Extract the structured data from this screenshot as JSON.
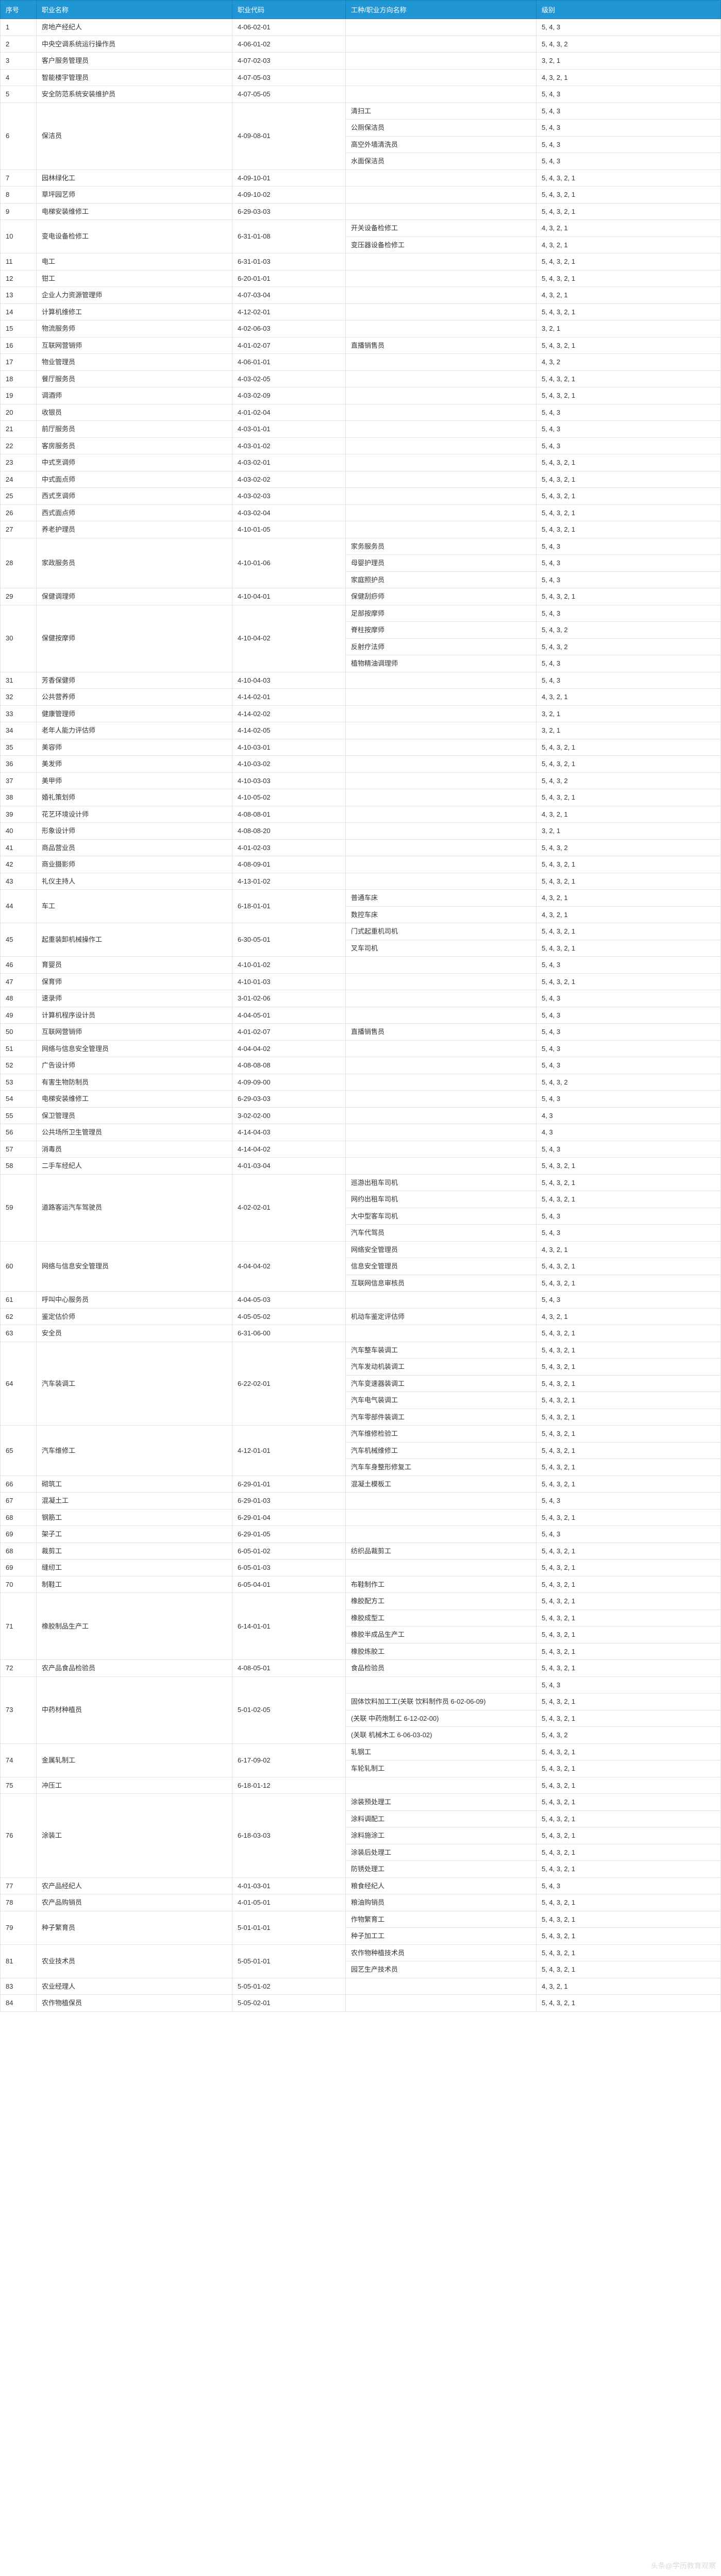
{
  "header": {
    "seq": "序号",
    "name": "职业名称",
    "code": "职业代码",
    "sub": "工种/职业方向名称",
    "level": "级别"
  },
  "watermark": "头条@学历教育观察",
  "rows": [
    {
      "seq": "1",
      "name": "房地产经纪人",
      "code": "4-06-02-01",
      "subs": [
        {
          "sub": "",
          "level": "5, 4, 3"
        }
      ]
    },
    {
      "seq": "2",
      "name": "中央空调系统运行操作员",
      "code": "4-06-01-02",
      "subs": [
        {
          "sub": "",
          "level": "5, 4, 3, 2"
        }
      ]
    },
    {
      "seq": "3",
      "name": "客户服务管理员",
      "code": "4-07-02-03",
      "subs": [
        {
          "sub": "",
          "level": "3, 2, 1"
        }
      ]
    },
    {
      "seq": "4",
      "name": "智能楼宇管理员",
      "code": "4-07-05-03",
      "subs": [
        {
          "sub": "",
          "level": "4, 3, 2, 1"
        }
      ]
    },
    {
      "seq": "5",
      "name": "安全防范系统安装维护员",
      "code": "4-07-05-05",
      "subs": [
        {
          "sub": "",
          "level": "5, 4, 3"
        }
      ]
    },
    {
      "seq": "6",
      "name": "保洁员",
      "code": "4-09-08-01",
      "subs": [
        {
          "sub": "清扫工",
          "level": "5, 4, 3"
        },
        {
          "sub": "公厕保洁员",
          "level": "5, 4, 3"
        },
        {
          "sub": "高空外墙清洗员",
          "level": "5, 4, 3"
        },
        {
          "sub": "水面保洁员",
          "level": "5, 4, 3"
        }
      ]
    },
    {
      "seq": "7",
      "name": "园林绿化工",
      "code": "4-09-10-01",
      "subs": [
        {
          "sub": "",
          "level": "5, 4, 3, 2, 1"
        }
      ]
    },
    {
      "seq": "8",
      "name": "草坪园艺师",
      "code": "4-09-10-02",
      "subs": [
        {
          "sub": "",
          "level": "5, 4, 3, 2, 1"
        }
      ]
    },
    {
      "seq": "9",
      "name": "电梯安装维修工",
      "code": "6-29-03-03",
      "subs": [
        {
          "sub": "",
          "level": "5, 4, 3, 2, 1"
        }
      ]
    },
    {
      "seq": "10",
      "name": "变电设备检修工",
      "code": "6-31-01-08",
      "subs": [
        {
          "sub": "开关设备检修工",
          "level": "4, 3, 2, 1"
        },
        {
          "sub": "变压器设备检修工",
          "level": "4, 3, 2, 1"
        }
      ]
    },
    {
      "seq": "11",
      "name": "电工",
      "code": "6-31-01-03",
      "subs": [
        {
          "sub": "",
          "level": "5, 4, 3, 2, 1"
        }
      ]
    },
    {
      "seq": "12",
      "name": "钳工",
      "code": "6-20-01-01",
      "subs": [
        {
          "sub": "",
          "level": "5, 4, 3, 2, 1"
        }
      ]
    },
    {
      "seq": "13",
      "name": "企业人力资源管理师",
      "code": "4-07-03-04",
      "subs": [
        {
          "sub": "",
          "level": "4, 3, 2, 1"
        }
      ]
    },
    {
      "seq": "14",
      "name": "计算机维修工",
      "code": "4-12-02-01",
      "subs": [
        {
          "sub": "",
          "level": "5, 4, 3, 2, 1"
        }
      ]
    },
    {
      "seq": "15",
      "name": "物流服务师",
      "code": "4-02-06-03",
      "subs": [
        {
          "sub": "",
          "level": "3, 2, 1"
        }
      ]
    },
    {
      "seq": "16",
      "name": "互联网营销师",
      "code": "4-01-02-07",
      "subs": [
        {
          "sub": "直播销售员",
          "level": "5, 4, 3, 2, 1"
        }
      ]
    },
    {
      "seq": "17",
      "name": "物业管理员",
      "code": "4-06-01-01",
      "subs": [
        {
          "sub": "",
          "level": "4, 3, 2"
        }
      ]
    },
    {
      "seq": "18",
      "name": "餐厅服务员",
      "code": "4-03-02-05",
      "subs": [
        {
          "sub": "",
          "level": "5, 4, 3, 2, 1"
        }
      ]
    },
    {
      "seq": "19",
      "name": "调酒师",
      "code": "4-03-02-09",
      "subs": [
        {
          "sub": "",
          "level": "5, 4, 3, 2, 1"
        }
      ]
    },
    {
      "seq": "20",
      "name": "收银员",
      "code": "4-01-02-04",
      "subs": [
        {
          "sub": "",
          "level": "5, 4, 3"
        }
      ]
    },
    {
      "seq": "21",
      "name": "前厅服务员",
      "code": "4-03-01-01",
      "subs": [
        {
          "sub": "",
          "level": "5, 4, 3"
        }
      ]
    },
    {
      "seq": "22",
      "name": "客房服务员",
      "code": "4-03-01-02",
      "subs": [
        {
          "sub": "",
          "level": "5, 4, 3"
        }
      ]
    },
    {
      "seq": "23",
      "name": "中式烹调师",
      "code": "4-03-02-01",
      "subs": [
        {
          "sub": "",
          "level": "5, 4, 3, 2, 1"
        }
      ]
    },
    {
      "seq": "24",
      "name": "中式面点师",
      "code": "4-03-02-02",
      "subs": [
        {
          "sub": "",
          "level": "5, 4, 3, 2, 1"
        }
      ]
    },
    {
      "seq": "25",
      "name": "西式烹调师",
      "code": "4-03-02-03",
      "subs": [
        {
          "sub": "",
          "level": "5, 4, 3, 2, 1"
        }
      ]
    },
    {
      "seq": "26",
      "name": "西式面点师",
      "code": "4-03-02-04",
      "subs": [
        {
          "sub": "",
          "level": "5, 4, 3, 2, 1"
        }
      ]
    },
    {
      "seq": "27",
      "name": "养老护理员",
      "code": "4-10-01-05",
      "subs": [
        {
          "sub": "",
          "level": "5, 4, 3, 2, 1"
        }
      ]
    },
    {
      "seq": "28",
      "name": "家政服务员",
      "code": "4-10-01-06",
      "subs": [
        {
          "sub": "家务服务员",
          "level": "5, 4, 3"
        },
        {
          "sub": "母婴护理员",
          "level": "5, 4, 3"
        },
        {
          "sub": "家庭照护员",
          "level": "5, 4, 3"
        }
      ]
    },
    {
      "seq": "29",
      "name": "保健调理师",
      "code": "4-10-04-01",
      "subs": [
        {
          "sub": "保健刮痧师",
          "level": "5, 4, 3, 2, 1"
        }
      ]
    },
    {
      "seq": "30",
      "name": "保健按摩师",
      "code": "4-10-04-02",
      "subs": [
        {
          "sub": "足部按摩师",
          "level": "5, 4, 3"
        },
        {
          "sub": "脊柱按摩师",
          "level": "5, 4, 3, 2"
        },
        {
          "sub": "反射疗法师",
          "level": "5, 4, 3, 2"
        },
        {
          "sub": "植物精油调理师",
          "level": "5, 4, 3"
        }
      ]
    },
    {
      "seq": "31",
      "name": "芳香保健师",
      "code": "4-10-04-03",
      "subs": [
        {
          "sub": "",
          "level": "5, 4, 3"
        }
      ]
    },
    {
      "seq": "32",
      "name": "公共营养师",
      "code": "4-14-02-01",
      "subs": [
        {
          "sub": "",
          "level": "4, 3, 2, 1"
        }
      ]
    },
    {
      "seq": "33",
      "name": "健康管理师",
      "code": "4-14-02-02",
      "subs": [
        {
          "sub": "",
          "level": "3, 2, 1"
        }
      ]
    },
    {
      "seq": "34",
      "name": "老年人能力评估师",
      "code": "4-14-02-05",
      "subs": [
        {
          "sub": "",
          "level": "3, 2, 1"
        }
      ]
    },
    {
      "seq": "35",
      "name": "美容师",
      "code": "4-10-03-01",
      "subs": [
        {
          "sub": "",
          "level": "5, 4, 3, 2, 1"
        }
      ]
    },
    {
      "seq": "36",
      "name": "美发师",
      "code": "4-10-03-02",
      "subs": [
        {
          "sub": "",
          "level": "5, 4, 3, 2, 1"
        }
      ]
    },
    {
      "seq": "37",
      "name": "美甲师",
      "code": "4-10-03-03",
      "subs": [
        {
          "sub": "",
          "level": "5, 4, 3, 2"
        }
      ]
    },
    {
      "seq": "38",
      "name": "婚礼策划师",
      "code": "4-10-05-02",
      "subs": [
        {
          "sub": "",
          "level": "5, 4, 3, 2, 1"
        }
      ]
    },
    {
      "seq": "39",
      "name": "花艺环境设计师",
      "code": "4-08-08-01",
      "subs": [
        {
          "sub": "",
          "level": "4, 3, 2, 1"
        }
      ]
    },
    {
      "seq": "40",
      "name": "形象设计师",
      "code": "4-08-08-20",
      "subs": [
        {
          "sub": "",
          "level": "3, 2, 1"
        }
      ]
    },
    {
      "seq": "41",
      "name": "商品营业员",
      "code": "4-01-02-03",
      "subs": [
        {
          "sub": "",
          "level": "5, 4, 3, 2"
        }
      ]
    },
    {
      "seq": "42",
      "name": "商业摄影师",
      "code": "4-08-09-01",
      "subs": [
        {
          "sub": "",
          "level": "5, 4, 3, 2, 1"
        }
      ]
    },
    {
      "seq": "43",
      "name": "礼仪主持人",
      "code": "4-13-01-02",
      "subs": [
        {
          "sub": "",
          "level": "5, 4, 3, 2, 1"
        }
      ]
    },
    {
      "seq": "44",
      "name": "车工",
      "code": "6-18-01-01",
      "subs": [
        {
          "sub": "普通车床",
          "level": "4, 3, 2, 1"
        },
        {
          "sub": "数控车床",
          "level": "4, 3, 2, 1"
        }
      ]
    },
    {
      "seq": "45",
      "name": "起重装卸机械操作工",
      "code": "6-30-05-01",
      "subs": [
        {
          "sub": "门式起重机司机",
          "level": "5, 4, 3, 2, 1"
        },
        {
          "sub": "叉车司机",
          "level": "5, 4, 3, 2, 1"
        }
      ]
    },
    {
      "seq": "46",
      "name": "育婴员",
      "code": "4-10-01-02",
      "subs": [
        {
          "sub": "",
          "level": "5, 4, 3"
        }
      ]
    },
    {
      "seq": "47",
      "name": "保育师",
      "code": "4-10-01-03",
      "subs": [
        {
          "sub": "",
          "level": "5, 4, 3, 2, 1"
        }
      ]
    },
    {
      "seq": "48",
      "name": "速录师",
      "code": "3-01-02-06",
      "subs": [
        {
          "sub": "",
          "level": "5, 4, 3"
        }
      ]
    },
    {
      "seq": "49",
      "name": "计算机程序设计员",
      "code": "4-04-05-01",
      "subs": [
        {
          "sub": "",
          "level": "5, 4, 3"
        }
      ]
    },
    {
      "seq": "50",
      "name": "互联网营销师",
      "code": "4-01-02-07",
      "subs": [
        {
          "sub": "直播销售员",
          "level": "5, 4, 3"
        }
      ]
    },
    {
      "seq": "51",
      "name": "网络与信息安全管理员",
      "code": "4-04-04-02",
      "subs": [
        {
          "sub": "",
          "level": "5, 4, 3"
        }
      ]
    },
    {
      "seq": "52",
      "name": "广告设计师",
      "code": "4-08-08-08",
      "subs": [
        {
          "sub": "",
          "level": "5, 4, 3"
        }
      ]
    },
    {
      "seq": "53",
      "name": "有害生物防制员",
      "code": "4-09-09-00",
      "subs": [
        {
          "sub": "",
          "level": "5, 4, 3, 2"
        }
      ]
    },
    {
      "seq": "54",
      "name": "电梯安装维修工",
      "code": "6-29-03-03",
      "subs": [
        {
          "sub": "",
          "level": "5, 4, 3"
        }
      ]
    },
    {
      "seq": "55",
      "name": "保卫管理员",
      "code": "3-02-02-00",
      "subs": [
        {
          "sub": "",
          "level": "4, 3"
        }
      ]
    },
    {
      "seq": "56",
      "name": "公共场所卫生管理员",
      "code": "4-14-04-03",
      "subs": [
        {
          "sub": "",
          "level": "4, 3"
        }
      ]
    },
    {
      "seq": "57",
      "name": "消毒员",
      "code": "4-14-04-02",
      "subs": [
        {
          "sub": "",
          "level": "5, 4, 3"
        }
      ]
    },
    {
      "seq": "58",
      "name": "二手车经纪人",
      "code": "4-01-03-04",
      "subs": [
        {
          "sub": "",
          "level": "5, 4, 3, 2, 1"
        }
      ]
    },
    {
      "seq": "59",
      "name": "道路客运汽车驾驶员",
      "code": "4-02-02-01",
      "subs": [
        {
          "sub": "巡游出租车司机",
          "level": "5, 4, 3, 2, 1"
        },
        {
          "sub": "网约出租车司机",
          "level": "5, 4, 3, 2, 1"
        },
        {
          "sub": "大中型客车司机",
          "level": "5, 4, 3"
        },
        {
          "sub": "汽车代驾员",
          "level": "5, 4, 3"
        }
      ]
    },
    {
      "seq": "60",
      "name": "网络与信息安全管理员",
      "code": "4-04-04-02",
      "subs": [
        {
          "sub": "网络安全管理员",
          "level": "4, 3, 2, 1"
        },
        {
          "sub": "信息安全管理员",
          "level": "5, 4, 3, 2, 1"
        },
        {
          "sub": "互联网信息审核员",
          "level": "5, 4, 3, 2, 1"
        }
      ]
    },
    {
      "seq": "61",
      "name": "呼叫中心服务员",
      "code": "4-04-05-03",
      "subs": [
        {
          "sub": "",
          "level": "5, 4, 3"
        }
      ]
    },
    {
      "seq": "62",
      "name": "鉴定估价师",
      "code": "4-05-05-02",
      "subs": [
        {
          "sub": "机动车鉴定评估师",
          "level": "4, 3, 2, 1"
        }
      ]
    },
    {
      "seq": "63",
      "name": "安全员",
      "code": "6-31-06-00",
      "subs": [
        {
          "sub": "",
          "level": "5, 4, 3, 2, 1"
        }
      ]
    },
    {
      "seq": "64",
      "name": "汽车装调工",
      "code": "6-22-02-01",
      "subs": [
        {
          "sub": "汽车整车装调工",
          "level": "5, 4, 3, 2, 1"
        },
        {
          "sub": "汽车发动机装调工",
          "level": "5, 4, 3, 2, 1"
        },
        {
          "sub": "汽车变速器装调工",
          "level": "5, 4, 3, 2, 1"
        },
        {
          "sub": "汽车电气装调工",
          "level": "5, 4, 3, 2, 1"
        },
        {
          "sub": "汽车零部件装调工",
          "level": "5, 4, 3, 2, 1"
        }
      ]
    },
    {
      "seq": "65",
      "name": "汽车维修工",
      "code": "4-12-01-01",
      "subs": [
        {
          "sub": "汽车维修检验工",
          "level": "5, 4, 3, 2, 1"
        },
        {
          "sub": "汽车机械维修工",
          "level": "5, 4, 3, 2, 1"
        },
        {
          "sub": "汽车车身整形修复工",
          "level": "5, 4, 3, 2, 1"
        }
      ]
    },
    {
      "seq": "66",
      "name": "砌筑工",
      "code": "6-29-01-01",
      "subs": [
        {
          "sub": "混凝土模板工",
          "level": "5, 4, 3, 2, 1"
        }
      ]
    },
    {
      "seq": "67",
      "name": "混凝土工",
      "code": "6-29-01-03",
      "subs": [
        {
          "sub": "",
          "level": "5, 4, 3"
        }
      ]
    },
    {
      "seq": "68",
      "name": "钢筋工",
      "code": "6-29-01-04",
      "subs": [
        {
          "sub": "",
          "level": "5, 4, 3, 2, 1"
        }
      ]
    },
    {
      "seq": "69",
      "name": "架子工",
      "code": "6-29-01-05",
      "subs": [
        {
          "sub": "",
          "level": "5, 4, 3"
        }
      ]
    },
    {
      "seq": "68",
      "name": "裁剪工",
      "code": "6-05-01-02",
      "subs": [
        {
          "sub": "纺织品裁剪工",
          "level": "5, 4, 3, 2, 1"
        }
      ]
    },
    {
      "seq": "69",
      "name": "缝纫工",
      "code": "6-05-01-03",
      "subs": [
        {
          "sub": "",
          "level": "5, 4, 3, 2, 1"
        }
      ]
    },
    {
      "seq": "70",
      "name": "制鞋工",
      "code": "6-05-04-01",
      "subs": [
        {
          "sub": "布鞋制作工",
          "level": "5, 4, 3, 2, 1"
        }
      ]
    },
    {
      "seq": "71",
      "name": "橡胶制品生产工",
      "code": "6-14-01-01",
      "subs": [
        {
          "sub": "橡胶配方工",
          "level": "5, 4, 3, 2, 1"
        },
        {
          "sub": "橡胶成型工",
          "level": "5, 4, 3, 2, 1"
        },
        {
          "sub": "橡胶半成品生产工",
          "level": "5, 4, 3, 2, 1"
        },
        {
          "sub": "橡胶炼胶工",
          "level": "5, 4, 3, 2, 1"
        }
      ]
    },
    {
      "seq": "72",
      "name": "农产品食品检验员",
      "code": "4-08-05-01",
      "subs": [
        {
          "sub": "食品检验员",
          "level": "5, 4, 3, 2, 1"
        }
      ]
    },
    {
      "seq": "73",
      "name": "中药材种植员",
      "code": "5-01-02-05",
      "subs": [
        {
          "sub": "",
          "level": "5, 4, 3"
        },
        {
          "sub": "固体饮料加工工(关联 饮料制作员 6-02-06-09)",
          "level": "5, 4, 3, 2, 1"
        },
        {
          "sub": "(关联 中药炮制工 6-12-02-00)",
          "level": "5, 4, 3, 2, 1"
        },
        {
          "sub": "(关联 机械木工 6-06-03-02)",
          "level": "5, 4, 3, 2"
        }
      ]
    },
    {
      "seq": "74",
      "name": "金属轧制工",
      "code": "6-17-09-02",
      "subs": [
        {
          "sub": "轧钢工",
          "level": "5, 4, 3, 2, 1"
        },
        {
          "sub": "车轮轧制工",
          "level": "5, 4, 3, 2, 1"
        }
      ]
    },
    {
      "seq": "75",
      "name": "冲压工",
      "code": "6-18-01-12",
      "subs": [
        {
          "sub": "",
          "level": "5, 4, 3, 2, 1"
        }
      ]
    },
    {
      "seq": "76",
      "name": "涂装工",
      "code": "6-18-03-03",
      "subs": [
        {
          "sub": "涂装预处理工",
          "level": "5, 4, 3, 2, 1"
        },
        {
          "sub": "涂料调配工",
          "level": "5, 4, 3, 2, 1"
        },
        {
          "sub": "涂料施涂工",
          "level": "5, 4, 3, 2, 1"
        },
        {
          "sub": "涂装后处理工",
          "level": "5, 4, 3, 2, 1"
        },
        {
          "sub": "防锈处理工",
          "level": "5, 4, 3, 2, 1"
        }
      ]
    },
    {
      "seq": "77",
      "name": "农产品经纪人",
      "code": "4-01-03-01",
      "subs": [
        {
          "sub": "粮食经纪人",
          "level": "5, 4, 3"
        }
      ]
    },
    {
      "seq": "78",
      "name": "农产品购销员",
      "code": "4-01-05-01",
      "subs": [
        {
          "sub": "粮油购销员",
          "level": "5, 4, 3, 2, 1"
        }
      ]
    },
    {
      "seq": "79",
      "name": "种子繁育员",
      "code": "5-01-01-01",
      "subs": [
        {
          "sub": "作物繁育工",
          "level": "5, 4, 3, 2, 1"
        },
        {
          "sub": "种子加工工",
          "level": "5, 4, 3, 2, 1"
        }
      ]
    },
    {
      "seq": "81",
      "name": "农业技术员",
      "code": "5-05-01-01",
      "subs": [
        {
          "sub": "农作物种植技术员",
          "level": "5, 4, 3, 2, 1"
        },
        {
          "sub": "园艺生产技术员",
          "level": "5, 4, 3, 2, 1"
        }
      ]
    },
    {
      "seq": "83",
      "name": "农业经理人",
      "code": "5-05-01-02",
      "subs": [
        {
          "sub": "",
          "level": "4, 3, 2, 1"
        }
      ]
    },
    {
      "seq": "84",
      "name": "农作物植保员",
      "code": "5-05-02-01",
      "subs": [
        {
          "sub": "",
          "level": "5, 4, 3, 2, 1"
        }
      ]
    }
  ]
}
